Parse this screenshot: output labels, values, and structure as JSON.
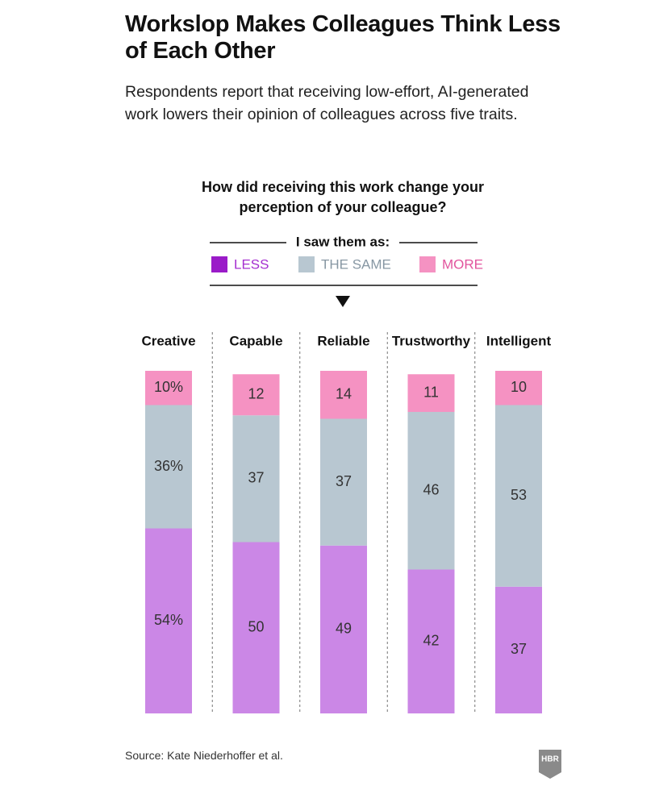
{
  "chart_data": {
    "type": "bar",
    "stacked": true,
    "title": "Workslop Makes Colleagues Think Less of Each Other",
    "subtitle": "Respondents report that receiving low-effort, AI-generated work lowers their opinion of colleagues across five traits.",
    "question": "How did receiving this work change your perception of your colleague?",
    "legend_title": "I saw them as:",
    "categories": [
      "Creative",
      "Capable",
      "Reliable",
      "Trustworthy",
      "Intelligent"
    ],
    "series": [
      {
        "name": "LESS",
        "color": "#cb87e6",
        "legend_color": "#9a1bc8",
        "text_color": "#a52fd0",
        "values": [
          54,
          50,
          49,
          42,
          37
        ],
        "value_labels": [
          "54%",
          "50",
          "49",
          "42",
          "37"
        ]
      },
      {
        "name": "THE SAME",
        "color": "#b8c7d1",
        "legend_color": "#b8c7d1",
        "text_color": "#8797a3",
        "values": [
          36,
          37,
          37,
          46,
          53
        ],
        "value_labels": [
          "36%",
          "37",
          "37",
          "46",
          "53"
        ]
      },
      {
        "name": "MORE",
        "color": "#f592c2",
        "legend_color": "#f592c2",
        "text_color": "#e2559e",
        "values": [
          10,
          12,
          14,
          11,
          10
        ],
        "value_labels": [
          "10%",
          "12",
          "14",
          "11",
          "10"
        ]
      }
    ],
    "source": "Source: Kate Niederhoffer et al.",
    "logo": "HBR"
  }
}
